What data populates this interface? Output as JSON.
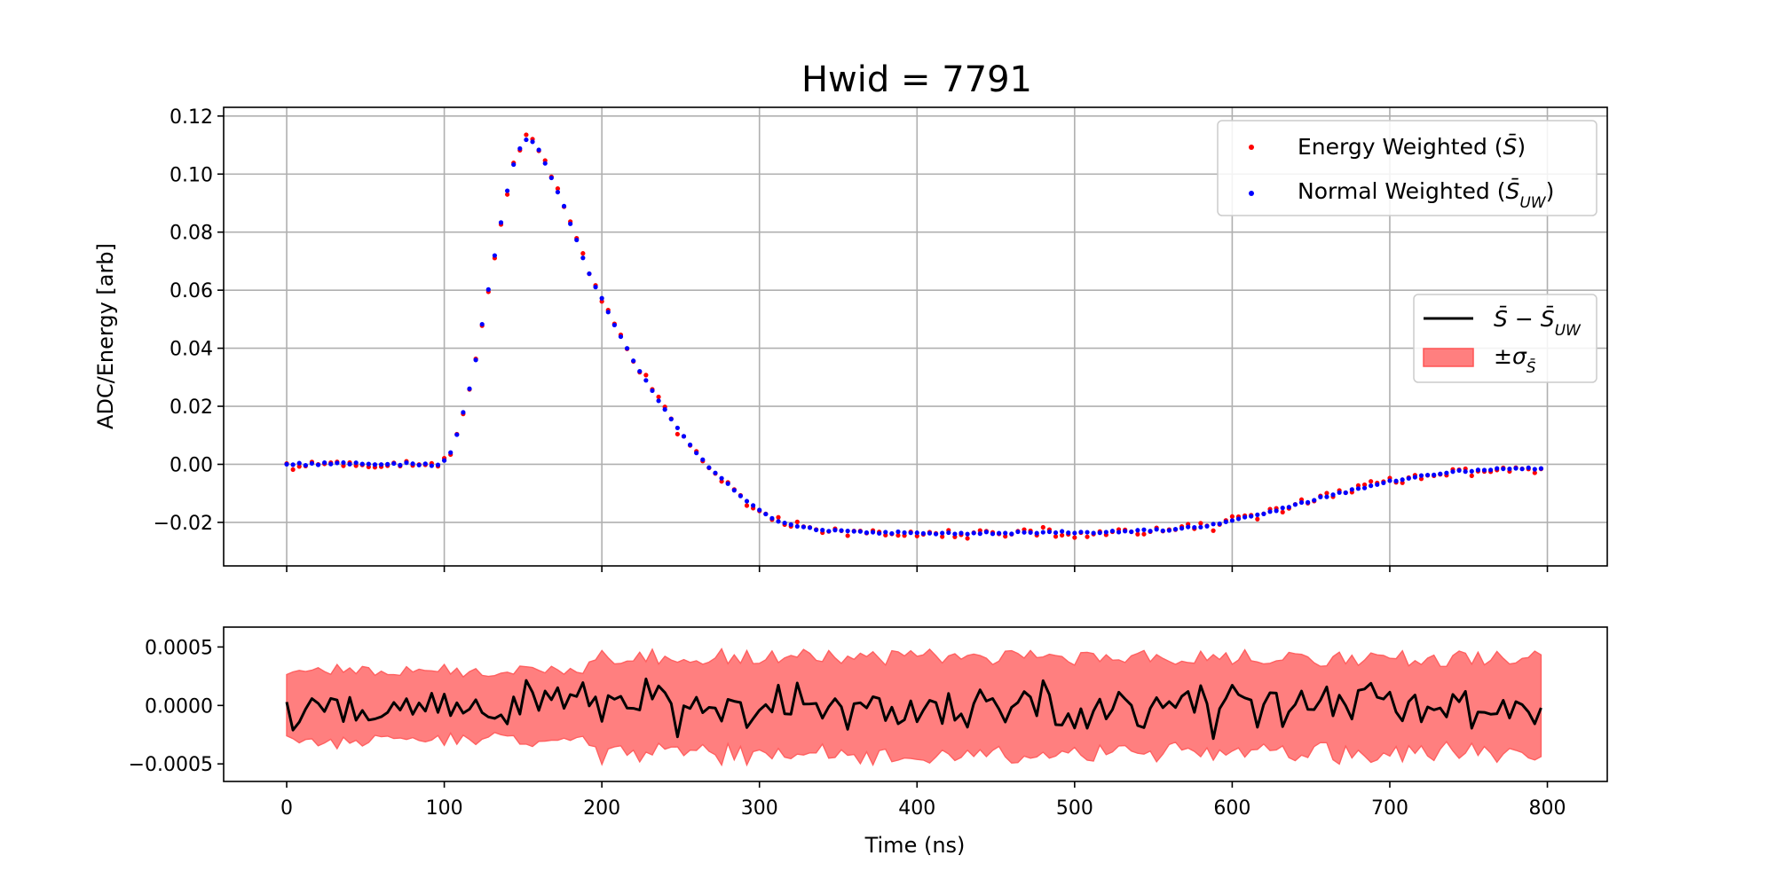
{
  "chart_data": [
    {
      "type": "scatter",
      "title": "Hwid = 7791",
      "xlabel": "",
      "ylabel": "ADC/Energy [arb]",
      "xlim": [
        -40,
        838
      ],
      "ylim": [
        -0.035,
        0.123
      ],
      "x_ticks": [
        0,
        100,
        200,
        300,
        400,
        500,
        600,
        700,
        800
      ],
      "y_ticks": [
        "0.12",
        "0.10",
        "0.08",
        "0.06",
        "0.04",
        "0.02",
        "0.00",
        "−0.02"
      ],
      "y_tick_values": [
        0.12,
        0.1,
        0.08,
        0.06,
        0.04,
        0.02,
        0.0,
        -0.02
      ],
      "grid": true,
      "legend_placement": "upper-right",
      "sample_spacing_ns": 4,
      "x_range": [
        0,
        796
      ],
      "pulse_keypoints": {
        "x": [
          0,
          96,
          100,
          104,
          108,
          112,
          116,
          120,
          124,
          128,
          132,
          136,
          140,
          144,
          148,
          152,
          156,
          160,
          164,
          168,
          172,
          176,
          180,
          184,
          188,
          192,
          196,
          200,
          210,
          220,
          230,
          240,
          250,
          260,
          270,
          280,
          290,
          300,
          310,
          320,
          330,
          340,
          350,
          360,
          380,
          400,
          420,
          440,
          460,
          480,
          500,
          520,
          540,
          560,
          580,
          600,
          620,
          640,
          660,
          680,
          700,
          720,
          740,
          760,
          780,
          796
        ],
        "y": [
          0.0,
          0.0,
          0.001,
          0.004,
          0.01,
          0.018,
          0.026,
          0.036,
          0.048,
          0.06,
          0.072,
          0.083,
          0.094,
          0.103,
          0.109,
          0.112,
          0.111,
          0.108,
          0.104,
          0.099,
          0.094,
          0.089,
          0.083,
          0.077,
          0.071,
          0.066,
          0.061,
          0.057,
          0.046,
          0.036,
          0.027,
          0.019,
          0.011,
          0.004,
          -0.002,
          -0.007,
          -0.012,
          -0.016,
          -0.019,
          -0.021,
          -0.022,
          -0.0225,
          -0.023,
          -0.0232,
          -0.0235,
          -0.0237,
          -0.0237,
          -0.0237,
          -0.0236,
          -0.0235,
          -0.0234,
          -0.0233,
          -0.023,
          -0.0225,
          -0.0215,
          -0.0195,
          -0.017,
          -0.014,
          -0.011,
          -0.0085,
          -0.006,
          -0.004,
          -0.0025,
          -0.0018,
          -0.0015,
          -0.0015
        ]
      },
      "series": [
        {
          "name": "Energy Weighted ($\\bar{S}$)",
          "legend_main": "Energy Weighted (",
          "legend_sym": "S̄",
          "legend_close": ")",
          "color": "#ff0000"
        },
        {
          "name": "Normal Weighted ($\\bar{S}_{UW}$)",
          "legend_main": "Normal Weighted (",
          "legend_sym": "S̄",
          "legend_sub": "UW",
          "legend_close": ")",
          "color": "#0000ff"
        }
      ]
    },
    {
      "type": "line",
      "title": "",
      "xlabel": "Time (ns)",
      "ylabel": "",
      "xlim": [
        -40,
        838
      ],
      "ylim": [
        -0.00065,
        0.00067
      ],
      "x_ticks": [
        0,
        100,
        200,
        300,
        400,
        500,
        600,
        700,
        800
      ],
      "y_ticks": [
        "0.0005",
        "0.0000",
        "−0.0005"
      ],
      "y_tick_values": [
        0.0005,
        0.0,
        -0.0005
      ],
      "grid": false,
      "legend_placement": "right (on upper panel)",
      "diff_amplitude": 0.00011,
      "band_envelope": {
        "x": [
          0,
          100,
          110,
          190,
          200,
          800
        ],
        "sigma": [
          0.0003,
          0.0003,
          0.00028,
          0.00032,
          0.00042,
          0.0004
        ]
      },
      "series": [
        {
          "name": "$\\bar{S} - \\bar{S}_{UW}$",
          "legend_sym": "S̄ − S̄",
          "legend_sub": "UW",
          "color": "#000000"
        },
        {
          "name": "$\\pm\\sigma_{\\bar{S}}$",
          "legend_sym": "±σ",
          "legend_sub": "S̄",
          "color": "#ff7f7f"
        }
      ]
    }
  ]
}
